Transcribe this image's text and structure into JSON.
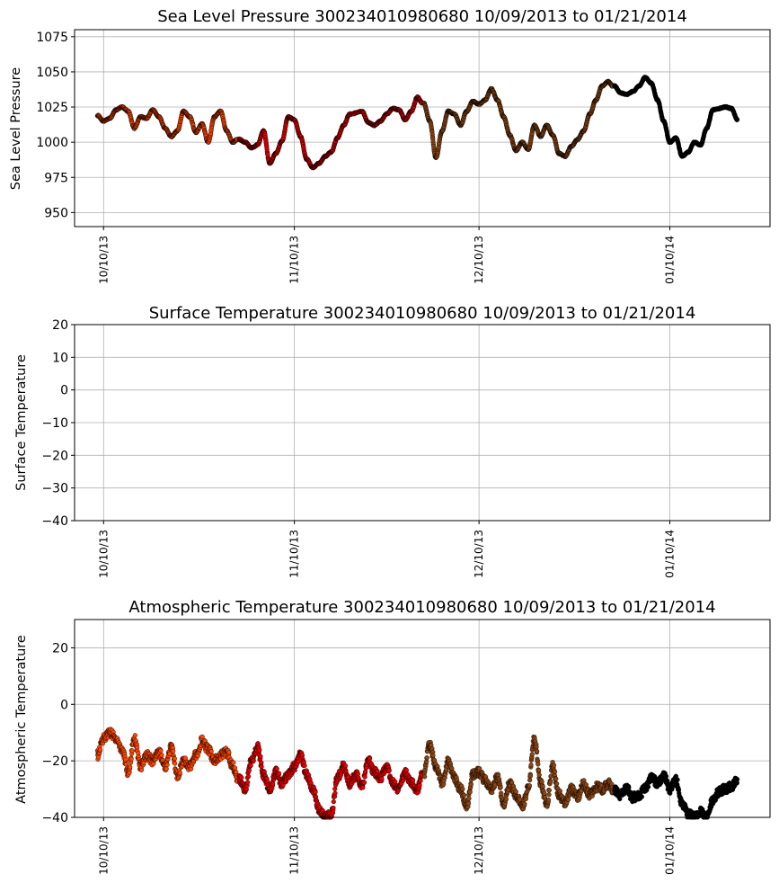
{
  "colors": {
    "oct": "#ff4500",
    "nov": "#e60000",
    "dec": "#8b4513",
    "jan": "#000000",
    "grid": "#b0b0b0",
    "edge": "#000000"
  },
  "chart_data": [
    {
      "type": "scatter",
      "title": "Sea Level Pressure 300234010980680  10/09/2013 to 01/21/2014",
      "xlabel": "",
      "ylabel": "Sea Level Pressure",
      "x_range": [
        "2013-10-09",
        "2014-01-21"
      ],
      "ylim": [
        940,
        1080
      ],
      "yticks": [
        950,
        975,
        1000,
        1025,
        1050,
        1075
      ],
      "xticks": [
        {
          "date": "2013-10-10",
          "label": "10/10/13"
        },
        {
          "date": "2013-11-10",
          "label": "11/10/13"
        },
        {
          "date": "2013-12-10",
          "label": "12/10/13"
        },
        {
          "date": "2014-01-10",
          "label": "01/10/14"
        }
      ],
      "grid": true,
      "series": [
        {
          "color_key": "oct",
          "points": [
            [
              "2013-10-09",
              1019
            ],
            [
              "2013-10-10",
              1015
            ],
            [
              "2013-10-11",
              1017
            ],
            [
              "2013-10-12",
              1023
            ],
            [
              "2013-10-13",
              1025
            ],
            [
              "2013-10-14",
              1022
            ],
            [
              "2013-10-15",
              1010
            ],
            [
              "2013-10-16",
              1018
            ],
            [
              "2013-10-17",
              1017
            ],
            [
              "2013-10-18",
              1023
            ],
            [
              "2013-10-19",
              1018
            ],
            [
              "2013-10-20",
              1010
            ],
            [
              "2013-10-21",
              1004
            ],
            [
              "2013-10-22",
              1008
            ],
            [
              "2013-10-23",
              1022
            ],
            [
              "2013-10-24",
              1018
            ],
            [
              "2013-10-25",
              1007
            ],
            [
              "2013-10-26",
              1013
            ],
            [
              "2013-10-27",
              1000
            ],
            [
              "2013-10-28",
              1018
            ],
            [
              "2013-10-29",
              1022
            ],
            [
              "2013-10-30",
              1008
            ],
            [
              "2013-10-31",
              1000
            ]
          ]
        },
        {
          "color_key": "nov",
          "points": [
            [
              "2013-11-01",
              1002
            ],
            [
              "2013-11-02",
              1000
            ],
            [
              "2013-11-03",
              996
            ],
            [
              "2013-11-04",
              998
            ],
            [
              "2013-11-05",
              1008
            ],
            [
              "2013-11-06",
              985
            ],
            [
              "2013-11-07",
              992
            ],
            [
              "2013-11-08",
              1001
            ],
            [
              "2013-11-09",
              1018
            ],
            [
              "2013-11-10",
              1016
            ],
            [
              "2013-11-11",
              1004
            ],
            [
              "2013-11-12",
              988
            ],
            [
              "2013-11-13",
              982
            ],
            [
              "2013-11-14",
              985
            ],
            [
              "2013-11-15",
              990
            ],
            [
              "2013-11-16",
              993
            ],
            [
              "2013-11-17",
              1003
            ],
            [
              "2013-11-18",
              1012
            ],
            [
              "2013-11-19",
              1020
            ],
            [
              "2013-11-21",
              1022
            ],
            [
              "2013-11-22",
              1014
            ],
            [
              "2013-11-23",
              1012
            ],
            [
              "2013-11-24",
              1015
            ],
            [
              "2013-11-25",
              1020
            ],
            [
              "2013-11-26",
              1024
            ],
            [
              "2013-11-27",
              1023
            ],
            [
              "2013-11-28",
              1016
            ],
            [
              "2013-11-29",
              1022
            ],
            [
              "2013-11-30",
              1032
            ]
          ]
        },
        {
          "color_key": "dec",
          "points": [
            [
              "2013-12-01",
              1028
            ],
            [
              "2013-12-02",
              1015
            ],
            [
              "2013-12-03",
              989
            ],
            [
              "2013-12-04",
              1008
            ],
            [
              "2013-12-05",
              1022
            ],
            [
              "2013-12-06",
              1020
            ],
            [
              "2013-12-07",
              1012
            ],
            [
              "2013-12-08",
              1022
            ],
            [
              "2013-12-09",
              1029
            ],
            [
              "2013-12-10",
              1027
            ],
            [
              "2013-12-11",
              1030
            ],
            [
              "2013-12-12",
              1038
            ],
            [
              "2013-12-13",
              1030
            ],
            [
              "2013-12-14",
              1018
            ],
            [
              "2013-12-15",
              1005
            ],
            [
              "2013-12-16",
              994
            ],
            [
              "2013-12-17",
              1000
            ],
            [
              "2013-12-18",
              995
            ],
            [
              "2013-12-19",
              1012
            ],
            [
              "2013-12-20",
              1004
            ],
            [
              "2013-12-21",
              1012
            ],
            [
              "2013-12-22",
              1005
            ],
            [
              "2013-12-23",
              992
            ],
            [
              "2013-12-24",
              990
            ],
            [
              "2013-12-25",
              997
            ],
            [
              "2013-12-26",
              1002
            ],
            [
              "2013-12-27",
              1008
            ],
            [
              "2013-12-28",
              1020
            ],
            [
              "2013-12-29",
              1030
            ],
            [
              "2013-12-30",
              1040
            ],
            [
              "2013-12-31",
              1043
            ]
          ]
        },
        {
          "color_key": "jan",
          "points": [
            [
              "2014-01-01",
              1040
            ],
            [
              "2014-01-02",
              1035
            ],
            [
              "2014-01-03",
              1034
            ],
            [
              "2014-01-04",
              1036
            ],
            [
              "2014-01-05",
              1040
            ],
            [
              "2014-01-06",
              1046
            ],
            [
              "2014-01-07",
              1042
            ],
            [
              "2014-01-08",
              1030
            ],
            [
              "2014-01-09",
              1015
            ],
            [
              "2014-01-10",
              1000
            ],
            [
              "2014-01-11",
              1003
            ],
            [
              "2014-01-12",
              990
            ],
            [
              "2014-01-13",
              993
            ],
            [
              "2014-01-14",
              1000
            ],
            [
              "2014-01-15",
              998
            ],
            [
              "2014-01-16",
              1010
            ],
            [
              "2014-01-17",
              1023
            ],
            [
              "2014-01-18",
              1024
            ],
            [
              "2014-01-19",
              1025
            ],
            [
              "2014-01-20",
              1024
            ],
            [
              "2014-01-21",
              1016
            ]
          ]
        }
      ]
    },
    {
      "type": "scatter",
      "title": "Surface Temperature 300234010980680  10/09/2013 to 01/21/2014",
      "xlabel": "",
      "ylabel": "Surface Temperature",
      "x_range": [
        "2013-10-09",
        "2014-01-21"
      ],
      "ylim": [
        -40,
        20
      ],
      "yticks": [
        -40,
        -30,
        -20,
        -10,
        0,
        10,
        20
      ],
      "xticks": [
        {
          "date": "2013-10-10",
          "label": "10/10/13"
        },
        {
          "date": "2013-11-10",
          "label": "11/10/13"
        },
        {
          "date": "2013-12-10",
          "label": "12/10/13"
        },
        {
          "date": "2014-01-10",
          "label": "01/10/14"
        }
      ],
      "grid": true,
      "series": []
    },
    {
      "type": "scatter",
      "title": "Atmospheric Temperature 300234010980680  10/09/2013 to 01/21/2014",
      "xlabel": "",
      "ylabel": "Atmospheric Temperature",
      "x_range": [
        "2013-10-09",
        "2014-01-21"
      ],
      "ylim": [
        -40,
        30
      ],
      "yticks": [
        -40,
        -20,
        0,
        20
      ],
      "xticks": [
        {
          "date": "2013-10-10",
          "label": "10/10/13"
        },
        {
          "date": "2013-11-10",
          "label": "11/10/13"
        },
        {
          "date": "2013-12-10",
          "label": "12/10/13"
        },
        {
          "date": "2014-01-10",
          "label": "01/10/14"
        }
      ],
      "grid": true,
      "series": [
        {
          "color_key": "oct",
          "points": [
            [
              "2013-10-09",
              -18
            ],
            [
              "2013-10-10",
              -12
            ],
            [
              "2013-10-11",
              -10
            ],
            [
              "2013-10-12",
              -12
            ],
            [
              "2013-10-13",
              -16
            ],
            [
              "2013-10-14",
              -24
            ],
            [
              "2013-10-15",
              -12
            ],
            [
              "2013-10-16",
              -22
            ],
            [
              "2013-10-17",
              -18
            ],
            [
              "2013-10-18",
              -20
            ],
            [
              "2013-10-19",
              -17
            ],
            [
              "2013-10-20",
              -22
            ],
            [
              "2013-10-21",
              -15
            ],
            [
              "2013-10-22",
              -25
            ],
            [
              "2013-10-23",
              -20
            ],
            [
              "2013-10-24",
              -22
            ],
            [
              "2013-10-25",
              -18
            ],
            [
              "2013-10-26",
              -13
            ],
            [
              "2013-10-27",
              -16
            ],
            [
              "2013-10-28",
              -20
            ],
            [
              "2013-10-29",
              -18
            ],
            [
              "2013-10-30",
              -17
            ],
            [
              "2013-10-31",
              -22
            ]
          ]
        },
        {
          "color_key": "nov",
          "points": [
            [
              "2013-11-01",
              -26
            ],
            [
              "2013-11-02",
              -30
            ],
            [
              "2013-11-03",
              -20
            ],
            [
              "2013-11-04",
              -15
            ],
            [
              "2013-11-05",
              -25
            ],
            [
              "2013-11-06",
              -30
            ],
            [
              "2013-11-07",
              -24
            ],
            [
              "2013-11-08",
              -28
            ],
            [
              "2013-11-09",
              -25
            ],
            [
              "2013-11-10",
              -22
            ],
            [
              "2013-11-11",
              -18
            ],
            [
              "2013-11-12",
              -25
            ],
            [
              "2013-11-13",
              -30
            ],
            [
              "2013-11-14",
              -37
            ],
            [
              "2013-11-15",
              -40
            ],
            [
              "2013-11-16",
              -39
            ],
            [
              "2013-11-17",
              -26
            ],
            [
              "2013-11-18",
              -22
            ],
            [
              "2013-11-19",
              -28
            ],
            [
              "2013-11-20",
              -25
            ],
            [
              "2013-11-21",
              -29
            ],
            [
              "2013-11-22",
              -20
            ],
            [
              "2013-11-23",
              -24
            ],
            [
              "2013-11-24",
              -26
            ],
            [
              "2013-11-25",
              -22
            ],
            [
              "2013-11-26",
              -28
            ],
            [
              "2013-11-27",
              -30
            ],
            [
              "2013-11-28",
              -24
            ],
            [
              "2013-11-29",
              -28
            ],
            [
              "2013-11-30",
              -30
            ]
          ]
        },
        {
          "color_key": "dec",
          "points": [
            [
              "2013-12-01",
              -25
            ],
            [
              "2013-12-02",
              -14
            ],
            [
              "2013-12-03",
              -22
            ],
            [
              "2013-12-04",
              -28
            ],
            [
              "2013-12-05",
              -20
            ],
            [
              "2013-12-06",
              -26
            ],
            [
              "2013-12-07",
              -30
            ],
            [
              "2013-12-08",
              -36
            ],
            [
              "2013-12-09",
              -25
            ],
            [
              "2013-12-10",
              -24
            ],
            [
              "2013-12-11",
              -27
            ],
            [
              "2013-12-12",
              -30
            ],
            [
              "2013-12-13",
              -26
            ],
            [
              "2013-12-14",
              -35
            ],
            [
              "2013-12-15",
              -28
            ],
            [
              "2013-12-16",
              -32
            ],
            [
              "2013-12-17",
              -36
            ],
            [
              "2013-12-18",
              -30
            ],
            [
              "2013-12-19",
              -12
            ],
            [
              "2013-12-20",
              -28
            ],
            [
              "2013-12-21",
              -35
            ],
            [
              "2013-12-22",
              -22
            ],
            [
              "2013-12-23",
              -32
            ],
            [
              "2013-12-24",
              -35
            ],
            [
              "2013-12-25",
              -30
            ],
            [
              "2013-12-26",
              -33
            ],
            [
              "2013-12-27",
              -28
            ],
            [
              "2013-12-28",
              -32
            ],
            [
              "2013-12-29",
              -29
            ],
            [
              "2013-12-30",
              -30
            ],
            [
              "2013-12-31",
              -28
            ]
          ]
        },
        {
          "color_key": "jan",
          "points": [
            [
              "2014-01-01",
              -30
            ],
            [
              "2014-01-02",
              -32
            ],
            [
              "2014-01-03",
              -30
            ],
            [
              "2014-01-04",
              -33
            ],
            [
              "2014-01-05",
              -32
            ],
            [
              "2014-01-06",
              -30
            ],
            [
              "2014-01-07",
              -26
            ],
            [
              "2014-01-08",
              -28
            ],
            [
              "2014-01-09",
              -25
            ],
            [
              "2014-01-10",
              -30
            ],
            [
              "2014-01-11",
              -27
            ],
            [
              "2014-01-12",
              -35
            ],
            [
              "2014-01-13",
              -39
            ],
            [
              "2014-01-14",
              -40
            ],
            [
              "2014-01-15",
              -38
            ],
            [
              "2014-01-16",
              -40
            ],
            [
              "2014-01-17",
              -34
            ],
            [
              "2014-01-18",
              -31
            ],
            [
              "2014-01-19",
              -30
            ],
            [
              "2014-01-20",
              -29
            ],
            [
              "2014-01-21",
              -27
            ]
          ]
        }
      ]
    }
  ]
}
